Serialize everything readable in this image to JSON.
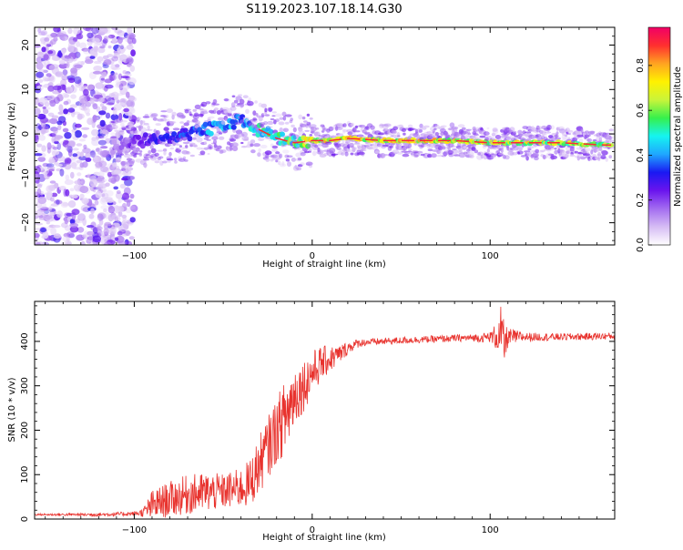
{
  "title": "S119.2023.107.18.14.G30",
  "colors": {
    "line": "#e8332e",
    "colormap": [
      "#ffffff",
      "#d6bcf4",
      "#a36cf0",
      "#6a14ee",
      "#1a19f2",
      "#1fa7ff",
      "#15f4f0",
      "#36f04c",
      "#c9f43a",
      "#fff200",
      "#ffa321",
      "#ff2f2f",
      "#f10066"
    ]
  },
  "chart_data": [
    {
      "type": "heatmap",
      "xlabel": "Height of straight line (km)",
      "ylabel": "Frequency (Hz)",
      "xlim": [
        -156,
        170
      ],
      "ylim": [
        -25,
        24
      ],
      "xticks": [
        -100,
        0,
        100
      ],
      "yticks": [
        -20,
        -10,
        0,
        10,
        20
      ],
      "colorbar": {
        "label": "Normalized spectral amplitude",
        "range": [
          0,
          0.97
        ],
        "ticks": [
          0.0,
          0.2,
          0.4,
          0.6,
          0.8
        ]
      },
      "ridge": {
        "x": [
          -110,
          -100,
          -90,
          -80,
          -70,
          -60,
          -50,
          -40,
          -30,
          -20,
          -10,
          0,
          10,
          20,
          40,
          60,
          80,
          100,
          120,
          140,
          165
        ],
        "y": [
          -3,
          -2,
          -1,
          -0.5,
          0,
          1,
          2,
          3,
          1,
          -1,
          -2,
          -1.5,
          -1.5,
          -1,
          -1.5,
          -1.5,
          -1.5,
          -2,
          -2,
          -2,
          -2.5
        ],
        "amplitude": [
          0.15,
          0.25,
          0.3,
          0.35,
          0.4,
          0.45,
          0.5,
          0.45,
          0.55,
          0.6,
          0.65,
          0.8,
          0.85,
          0.82,
          0.78,
          0.85,
          0.8,
          0.75,
          0.78,
          0.72,
          0.7
        ]
      }
    },
    {
      "type": "line",
      "xlabel": "Height of straight line (km)",
      "ylabel": "SNR (10 * v/v)",
      "xlim": [
        -156,
        170
      ],
      "ylim": [
        0,
        490
      ],
      "xticks": [
        -100,
        0,
        100
      ],
      "yticks": [
        0,
        100,
        200,
        300,
        400
      ],
      "series": [
        {
          "x": [
            -156,
            -120,
            -100,
            -95,
            -90,
            -80,
            -70,
            -60,
            -50,
            -40,
            -35,
            -30,
            -25,
            -20,
            -15,
            -12,
            -10,
            -5,
            0,
            5,
            10,
            15,
            20,
            25,
            30,
            40,
            50,
            60,
            70,
            80,
            90,
            95,
            100,
            105,
            106,
            108,
            110,
            120,
            140,
            170
          ],
          "y": [
            10,
            10,
            12,
            15,
            30,
            45,
            55,
            60,
            62,
            70,
            80,
            120,
            160,
            200,
            230,
            260,
            280,
            300,
            330,
            350,
            360,
            370,
            385,
            395,
            398,
            400,
            402,
            404,
            405,
            407,
            408,
            408,
            410,
            412,
            420,
            390,
            410,
            410,
            410,
            412
          ],
          "noise": [
            2,
            4,
            5,
            10,
            35,
            40,
            45,
            45,
            40,
            45,
            55,
            65,
            70,
            75,
            85,
            90,
            70,
            60,
            50,
            40,
            30,
            22,
            15,
            10,
            8,
            8,
            8,
            8,
            8,
            8,
            8,
            10,
            12,
            40,
            60,
            50,
            20,
            10,
            8,
            8
          ]
        }
      ]
    }
  ]
}
